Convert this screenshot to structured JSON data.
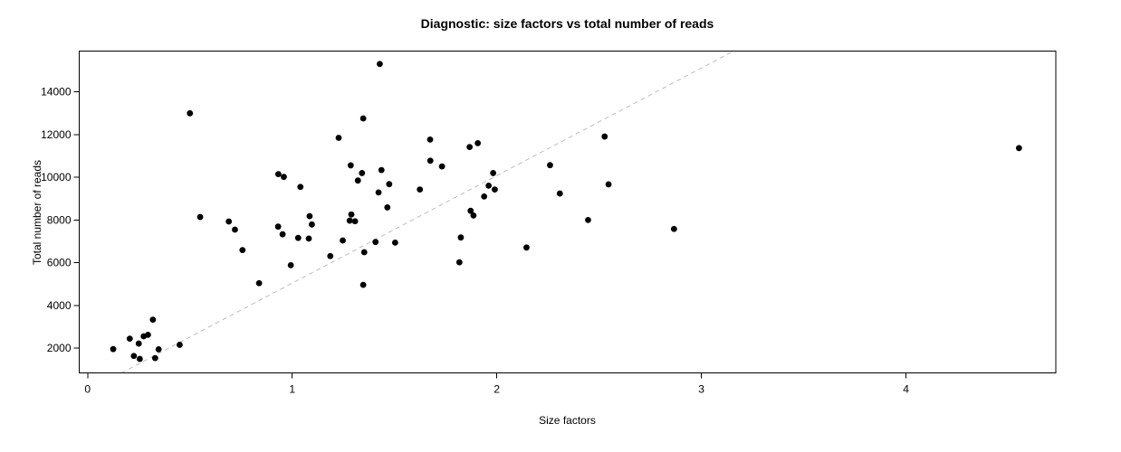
{
  "figure": {
    "background": "#ffffff",
    "text_color": "#000000"
  },
  "chart_data": {
    "type": "scatter",
    "title": "Diagnostic: size factors vs total number of reads",
    "xlabel": "Size factors",
    "ylabel": "Total number of reads",
    "xlim": [
      -0.041,
      4.732
    ],
    "ylim": [
      835,
      15915
    ],
    "xticks": [
      0,
      1,
      2,
      3,
      4
    ],
    "yticks": [
      2000,
      4000,
      6000,
      8000,
      10000,
      12000,
      14000
    ],
    "grid": false,
    "legend": null,
    "point_color": "#000000",
    "reference_line": {
      "style": "dashed",
      "slope": 5040,
      "intercept": 0,
      "color": "#bdbdbd"
    },
    "points": [
      [
        0.125,
        1950
      ],
      [
        0.206,
        2440
      ],
      [
        0.226,
        1630
      ],
      [
        0.25,
        2210
      ],
      [
        0.255,
        1490
      ],
      [
        0.274,
        2550
      ],
      [
        0.295,
        2620
      ],
      [
        0.319,
        3330
      ],
      [
        0.33,
        1530
      ],
      [
        0.347,
        1940
      ],
      [
        0.45,
        2150
      ],
      [
        0.5,
        13000
      ],
      [
        0.55,
        8140
      ],
      [
        0.69,
        7930
      ],
      [
        0.72,
        7550
      ],
      [
        0.757,
        6590
      ],
      [
        0.838,
        5040
      ],
      [
        0.931,
        7690
      ],
      [
        0.932,
        10150
      ],
      [
        0.953,
        7330
      ],
      [
        0.959,
        10020
      ],
      [
        0.993,
        5880
      ],
      [
        1.029,
        7160
      ],
      [
        1.04,
        9550
      ],
      [
        1.081,
        7130
      ],
      [
        1.085,
        8180
      ],
      [
        1.096,
        7790
      ],
      [
        1.186,
        6310
      ],
      [
        1.227,
        11850
      ],
      [
        1.247,
        7040
      ],
      [
        1.281,
        7970
      ],
      [
        1.289,
        8260
      ],
      [
        1.307,
        7940
      ],
      [
        1.286,
        10560
      ],
      [
        1.321,
        9850
      ],
      [
        1.341,
        10200
      ],
      [
        1.347,
        12760
      ],
      [
        1.347,
        4960
      ],
      [
        1.352,
        6490
      ],
      [
        1.407,
        6970
      ],
      [
        1.422,
        9290
      ],
      [
        1.428,
        15310
      ],
      [
        1.436,
        10340
      ],
      [
        1.465,
        8590
      ],
      [
        1.474,
        9680
      ],
      [
        1.503,
        6940
      ],
      [
        1.624,
        9430
      ],
      [
        1.674,
        11770
      ],
      [
        1.675,
        10780
      ],
      [
        1.732,
        10510
      ],
      [
        1.817,
        6020
      ],
      [
        1.824,
        7180
      ],
      [
        1.867,
        11420
      ],
      [
        1.872,
        8430
      ],
      [
        1.886,
        8210
      ],
      [
        1.907,
        11600
      ],
      [
        1.938,
        9100
      ],
      [
        1.96,
        9610
      ],
      [
        1.982,
        10200
      ],
      [
        1.99,
        9430
      ],
      [
        2.145,
        6710
      ],
      [
        2.26,
        10570
      ],
      [
        2.308,
        9240
      ],
      [
        2.446,
        8000
      ],
      [
        2.527,
        11910
      ],
      [
        2.546,
        9670
      ],
      [
        2.866,
        7580
      ],
      [
        4.552,
        11370
      ]
    ]
  }
}
